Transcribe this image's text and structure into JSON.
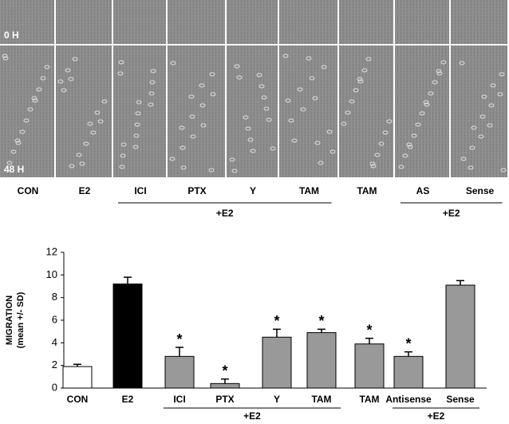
{
  "panels": {
    "row_labels": [
      "0 H",
      "48 H"
    ],
    "columns": [
      "CON",
      "E2",
      "ICI",
      "PTX",
      "Y",
      "TAM",
      "TAM",
      "AS",
      "Sense"
    ],
    "groups": [
      {
        "label": "+E2",
        "from": 2,
        "to": 5
      },
      {
        "label": "+E2",
        "from": 7,
        "to": 8
      }
    ]
  },
  "chart_data": {
    "type": "bar",
    "y_label": [
      "MIGRATION",
      "(mean +/- SD)"
    ],
    "categories": [
      "CON",
      "E2",
      "ICI",
      "PTX",
      "Y",
      "TAM",
      "TAM",
      "Antisense",
      "Sense"
    ],
    "values": [
      1.9,
      9.2,
      2.8,
      0.4,
      4.5,
      4.9,
      3.9,
      2.8,
      9.1
    ],
    "errors": [
      0.2,
      0.6,
      0.8,
      0.4,
      0.7,
      0.3,
      0.5,
      0.4,
      0.4
    ],
    "colors": [
      "#ffffff",
      "#000000",
      "#999999",
      "#999999",
      "#999999",
      "#999999",
      "#999999",
      "#999999",
      "#999999"
    ],
    "significant": [
      false,
      false,
      true,
      true,
      true,
      true,
      true,
      true,
      false
    ],
    "significance_marker": "*",
    "groups": [
      {
        "label": "+E2",
        "from": 2,
        "to": 5
      },
      {
        "label": "+E2",
        "from": 7,
        "to": 8
      }
    ],
    "ylim": [
      0,
      12
    ],
    "yticks": [
      0,
      2,
      4,
      6,
      8,
      10,
      12
    ],
    "grid": false
  }
}
